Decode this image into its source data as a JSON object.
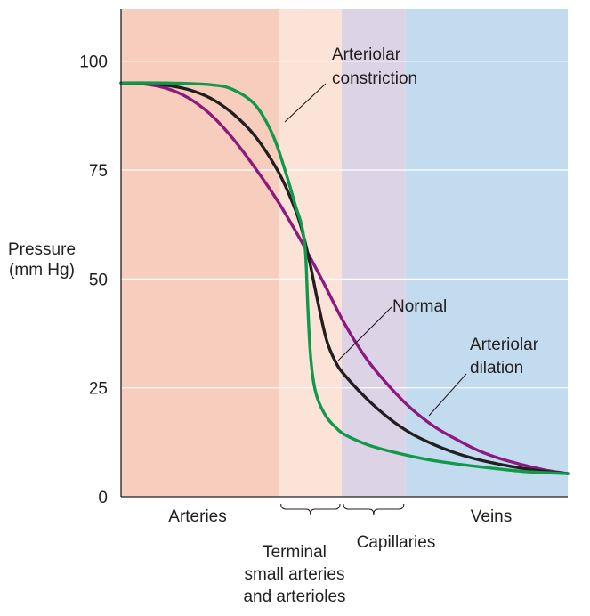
{
  "chart_data": {
    "type": "line",
    "ylabel": [
      "Pressure",
      "(mm Hg)"
    ],
    "ylim": [
      0,
      112
    ],
    "y_ticks": [
      0,
      25,
      50,
      75,
      100
    ],
    "xlim": [
      0,
      100
    ],
    "grid": true,
    "regions": [
      {
        "name": "Arteries",
        "start": 0,
        "end": 35.4,
        "color": "#f7cdbd"
      },
      {
        "name": "Terminal small arteries and arterioles",
        "start": 35.4,
        "end": 49.4,
        "color": "#fbe3d8"
      },
      {
        "name": "Capillaries",
        "start": 49.4,
        "end": 63.7,
        "color": "#dcd3e7"
      },
      {
        "name": "Veins",
        "start": 63.7,
        "end": 100,
        "color": "#c3dbef"
      }
    ],
    "region_labels": {
      "arteries": "Arteries",
      "terminal": [
        "Terminal",
        "small arteries",
        "and arterioles"
      ],
      "capillaries": "Capillaries",
      "veins": "Veins"
    },
    "series": [
      {
        "name": "Arteriolar dilation",
        "color": "#8c1a7e",
        "x": [
          0,
          5,
          10,
          15,
          20,
          25,
          30,
          35,
          40,
          45,
          50,
          55,
          60,
          65,
          70,
          75,
          80,
          85,
          90,
          95,
          100
        ],
        "y": [
          95,
          94.8,
          93.8,
          91.6,
          87.8,
          82.3,
          75.5,
          68,
          59.3,
          49.8,
          39.8,
          31.6,
          25.4,
          20.2,
          16.2,
          13.2,
          10.6,
          8.7,
          7.3,
          6.1,
          5.3
        ]
      },
      {
        "name": "Normal",
        "color": "#231f20",
        "x": [
          0,
          5,
          10,
          15,
          20,
          25,
          30,
          35,
          38,
          40,
          42,
          44,
          46,
          48,
          50,
          55,
          60,
          65,
          70,
          75,
          80,
          85,
          90,
          95,
          100
        ],
        "y": [
          95,
          94.9,
          94.5,
          93.5,
          91.5,
          88,
          82.8,
          75,
          68.5,
          63,
          55,
          45,
          36,
          31,
          28,
          22.5,
          18,
          14.5,
          12,
          10,
          8.5,
          7.4,
          6.5,
          5.8,
          5.3
        ]
      },
      {
        "name": "Arteriolar constriction",
        "color": "#12984a",
        "x": [
          0,
          10,
          20,
          25,
          30,
          34,
          37,
          39,
          40.5,
          41.3,
          41.8,
          42.3,
          43,
          44,
          46,
          48,
          50,
          55,
          60,
          65,
          70,
          80,
          90,
          100
        ],
        "y": [
          95,
          95,
          94.6,
          93.5,
          90,
          83,
          74,
          67,
          62,
          56,
          44,
          34,
          27,
          22.5,
          18.3,
          16,
          14.3,
          12,
          10.5,
          9.3,
          8.3,
          6.9,
          5.8,
          5.3
        ]
      }
    ],
    "annotations": [
      {
        "series": "Arteriolar constriction",
        "text": [
          "Arteriolar",
          "constriction"
        ]
      },
      {
        "series": "Normal",
        "text": [
          "Normal"
        ]
      },
      {
        "series": "Arteriolar dilation",
        "text": [
          "Arteriolar",
          "dilation"
        ]
      }
    ]
  }
}
